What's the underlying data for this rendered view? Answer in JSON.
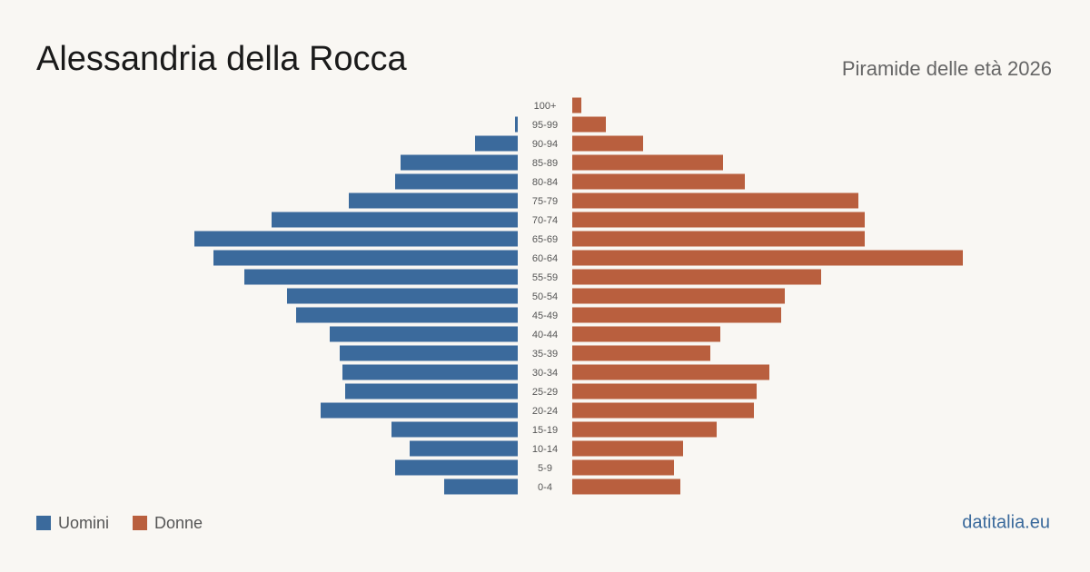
{
  "chart_data": {
    "type": "pyramid",
    "title": "Alessandria della Rocca",
    "subtitle": "Piramide delle età 2026",
    "source": "datitalia.eu",
    "categories": [
      "100+",
      "95-99",
      "90-94",
      "85-89",
      "80-84",
      "75-79",
      "70-74",
      "65-69",
      "60-64",
      "55-59",
      "50-54",
      "45-49",
      "40-44",
      "35-39",
      "30-34",
      "25-29",
      "20-24",
      "15-19",
      "10-14",
      "5-9",
      "0-4"
    ],
    "series": [
      {
        "name": "Uomini",
        "color": "#3b6a9c",
        "side": "left",
        "values": [
          0,
          3,
          47,
          129,
          135,
          186,
          271,
          356,
          335,
          301,
          254,
          244,
          207,
          196,
          193,
          190,
          217,
          139,
          119,
          135,
          81
        ]
      },
      {
        "name": "Donne",
        "color": "#b95f3e",
        "side": "right",
        "values": [
          10,
          37,
          78,
          166,
          190,
          315,
          322,
          322,
          430,
          274,
          234,
          230,
          163,
          152,
          217,
          203,
          200,
          159,
          122,
          112,
          119
        ]
      }
    ]
  }
}
